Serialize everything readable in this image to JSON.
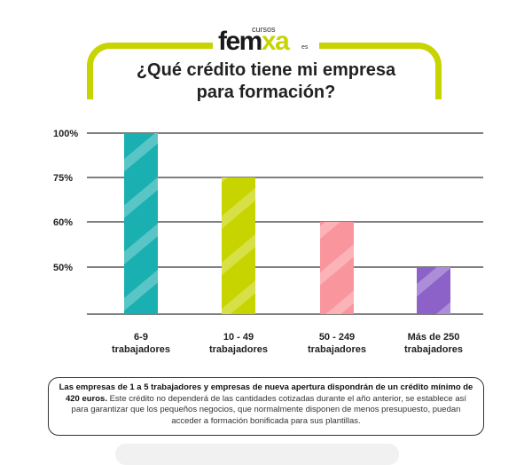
{
  "brand": {
    "cursos": "cursos",
    "name_part1": "fem",
    "name_part2": "xa",
    "suffix": "es",
    "accent": "#c8d400"
  },
  "title": {
    "line1": "¿Qué crédito tiene mi empresa",
    "line2": "para formación?"
  },
  "chart_data": {
    "type": "bar",
    "categories": [
      [
        "6-9",
        "trabajadores"
      ],
      [
        "10 - 49",
        "trabajadores"
      ],
      [
        "50 - 249",
        "trabajadores"
      ],
      [
        "Más de 250",
        "trabajadores"
      ]
    ],
    "values": [
      100,
      75,
      60,
      50
    ],
    "y_ticks": [
      50,
      60,
      75,
      100
    ],
    "y_tick_labels": [
      "50%",
      "60%",
      "75%",
      "100%"
    ],
    "colors": [
      "#1aafb0",
      "#c8d400",
      "#f9959c",
      "#8c61c8"
    ],
    "grid": true,
    "title": "¿Qué crédito tiene mi empresa para formación?",
    "xlabel": "",
    "ylabel": ""
  },
  "note": {
    "bold_text": "Las empresas de 1 a 5 trabajadores y empresas de nueva apertura dispondrán de un crédito mínimo de 420 euros.",
    "text": "Este crédito no dependerá de las cantidades cotizadas durante el año anterior, se establece así para garantizar que los pequeños negocios, que normalmente disponen de menos presupuesto, puedan acceder a formación bonificada para sus plantillas."
  }
}
